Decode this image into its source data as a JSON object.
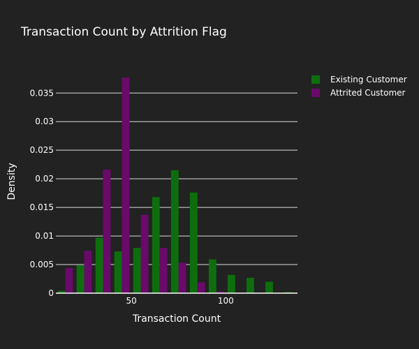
{
  "chart_data": {
    "type": "bar",
    "title": "Transaction Count by Attrition Flag",
    "xlabel": "Transaction Count",
    "ylabel": "Density",
    "xlim": [
      10,
      138
    ],
    "ylim": [
      0,
      0.0415
    ],
    "x_ticks": [
      50,
      100
    ],
    "y_ticks": [
      0,
      0.005,
      0.01,
      0.015,
      0.02,
      0.025,
      0.03,
      0.035
    ],
    "y_tick_labels": [
      "0",
      "0.005",
      "0.01",
      "0.015",
      "0.02",
      "0.025",
      "0.03",
      "0.035"
    ],
    "bin_starts": [
      10,
      20,
      30,
      40,
      50,
      60,
      70,
      80,
      90,
      100,
      110,
      120,
      130
    ],
    "bin_width": 10,
    "grid": true,
    "legend_position": "top-right",
    "series": [
      {
        "name": "Existing Customer",
        "color": "#0e6e0e",
        "values": [
          0.0004,
          0.0049,
          0.0097,
          0.0073,
          0.0079,
          0.0168,
          0.0215,
          0.0176,
          0.0059,
          0.0032,
          0.0027,
          0.002,
          0.0002
        ]
      },
      {
        "name": "Attrited Customer",
        "color": "#6a0a6a",
        "values": [
          0.0044,
          0.0074,
          0.0216,
          0.0377,
          0.0137,
          0.0079,
          0.0053,
          0.0019,
          0.0003,
          0,
          0,
          0,
          0
        ]
      }
    ]
  }
}
